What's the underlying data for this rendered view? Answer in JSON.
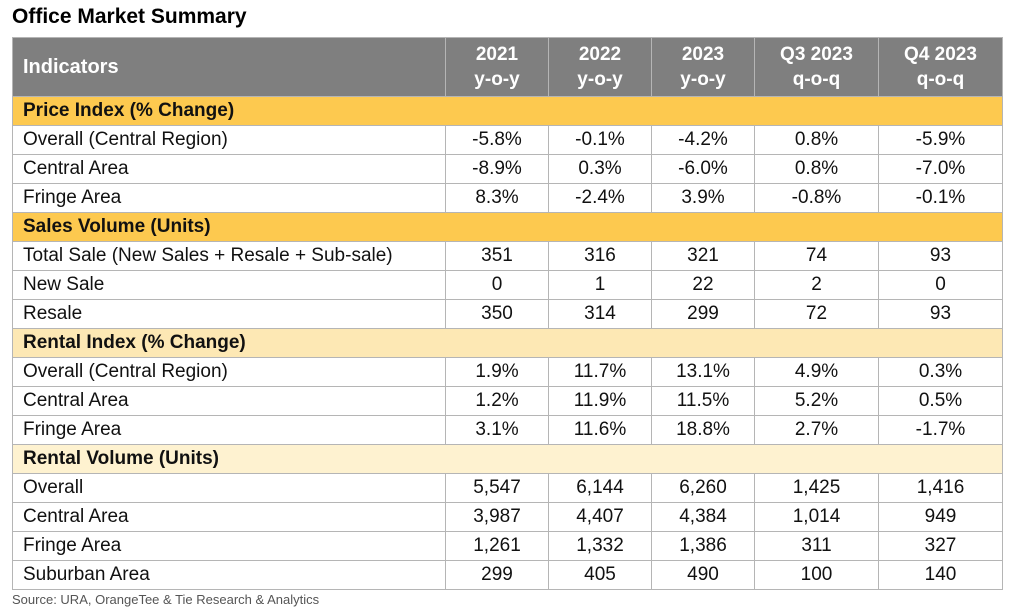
{
  "title": "Office Market Summary",
  "header": {
    "indicators_label": "Indicators",
    "columns": [
      {
        "line1": "2021",
        "line2": "y-o-y"
      },
      {
        "line1": "2022",
        "line2": "y-o-y"
      },
      {
        "line1": "2023",
        "line2": "y-o-y"
      },
      {
        "line1": "Q3 2023",
        "line2": "q-o-q"
      },
      {
        "line1": "Q4 2023",
        "line2": "q-o-q"
      }
    ]
  },
  "sections": [
    {
      "title": "Price Index (% Change)",
      "rows": [
        {
          "label": "Overall (Central Region)",
          "values": [
            "-5.8%",
            "-0.1%",
            "-4.2%",
            "0.8%",
            "-5.9%"
          ]
        },
        {
          "label": "Central Area",
          "values": [
            "-8.9%",
            "0.3%",
            "-6.0%",
            "0.8%",
            "-7.0%"
          ]
        },
        {
          "label": "Fringe Area",
          "values": [
            "8.3%",
            "-2.4%",
            "3.9%",
            "-0.8%",
            "-0.1%"
          ]
        }
      ]
    },
    {
      "title": "Sales Volume (Units)",
      "rows": [
        {
          "label": "Total Sale (New Sales + Resale + Sub-sale)",
          "values": [
            "351",
            "316",
            "321",
            "74",
            "93"
          ]
        },
        {
          "label": "New Sale",
          "values": [
            "0",
            "1",
            "22",
            "2",
            "0"
          ]
        },
        {
          "label": "Resale",
          "values": [
            "350",
            "314",
            "299",
            "72",
            "93"
          ]
        }
      ]
    },
    {
      "title": "Rental Index (% Change)",
      "rows": [
        {
          "label": "Overall (Central Region)",
          "values": [
            "1.9%",
            "11.7%",
            "13.1%",
            "4.9%",
            "0.3%"
          ]
        },
        {
          "label": "Central Area",
          "values": [
            "1.2%",
            "11.9%",
            "11.5%",
            "5.2%",
            "0.5%"
          ]
        },
        {
          "label": "Fringe Area",
          "values": [
            "3.1%",
            "11.6%",
            "18.8%",
            "2.7%",
            "-1.7%"
          ]
        }
      ]
    },
    {
      "title": "Rental Volume (Units)",
      "rows": [
        {
          "label": "Overall",
          "values": [
            "5,547",
            "6,144",
            "6,260",
            "1,425",
            "1,416"
          ]
        },
        {
          "label": "Central Area",
          "values": [
            "3,987",
            "4,407",
            "4,384",
            "1,014",
            "949"
          ]
        },
        {
          "label": "Fringe Area",
          "values": [
            "1,261",
            "1,332",
            "1,386",
            "311",
            "327"
          ]
        },
        {
          "label": "Suburban Area",
          "values": [
            "299",
            "405",
            "490",
            "100",
            "140"
          ]
        }
      ]
    }
  ],
  "source": "Source: URA, OrangeTee & Tie Research & Analytics",
  "colors": {
    "header_bg": "#7f7f7f",
    "section_bg": "#fdc94f",
    "section_bg_light": "#fde8b4",
    "section_bg_pale": "#fef2d0"
  }
}
